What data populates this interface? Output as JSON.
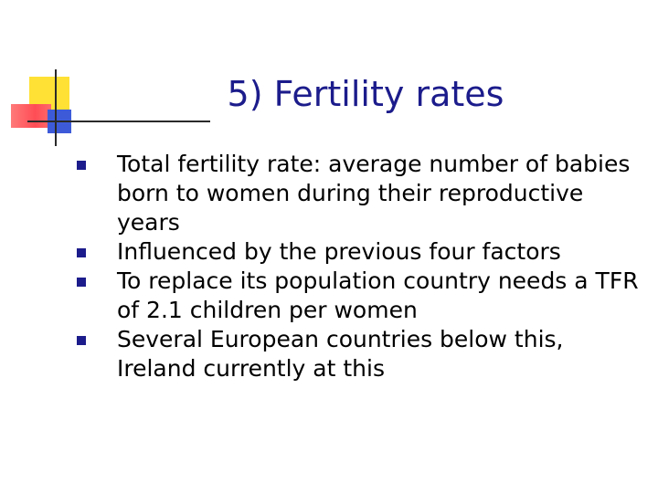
{
  "slide": {
    "title": "5) Fertility rates",
    "bullets": [
      "Total fertility rate: average number of babies born to women during their reproductive years",
      "Influenced by the previous four factors",
      "To replace its population country needs a TFR of 2.1 children per women",
      "Several European countries below this, Ireland currently at this"
    ]
  },
  "colors": {
    "title": "#1c1c8c",
    "bullet_marker": "#1c1c8c",
    "deco_yellow": "#FFE135",
    "deco_red": "#ff4d55",
    "deco_blue": "#3d5bd9"
  }
}
